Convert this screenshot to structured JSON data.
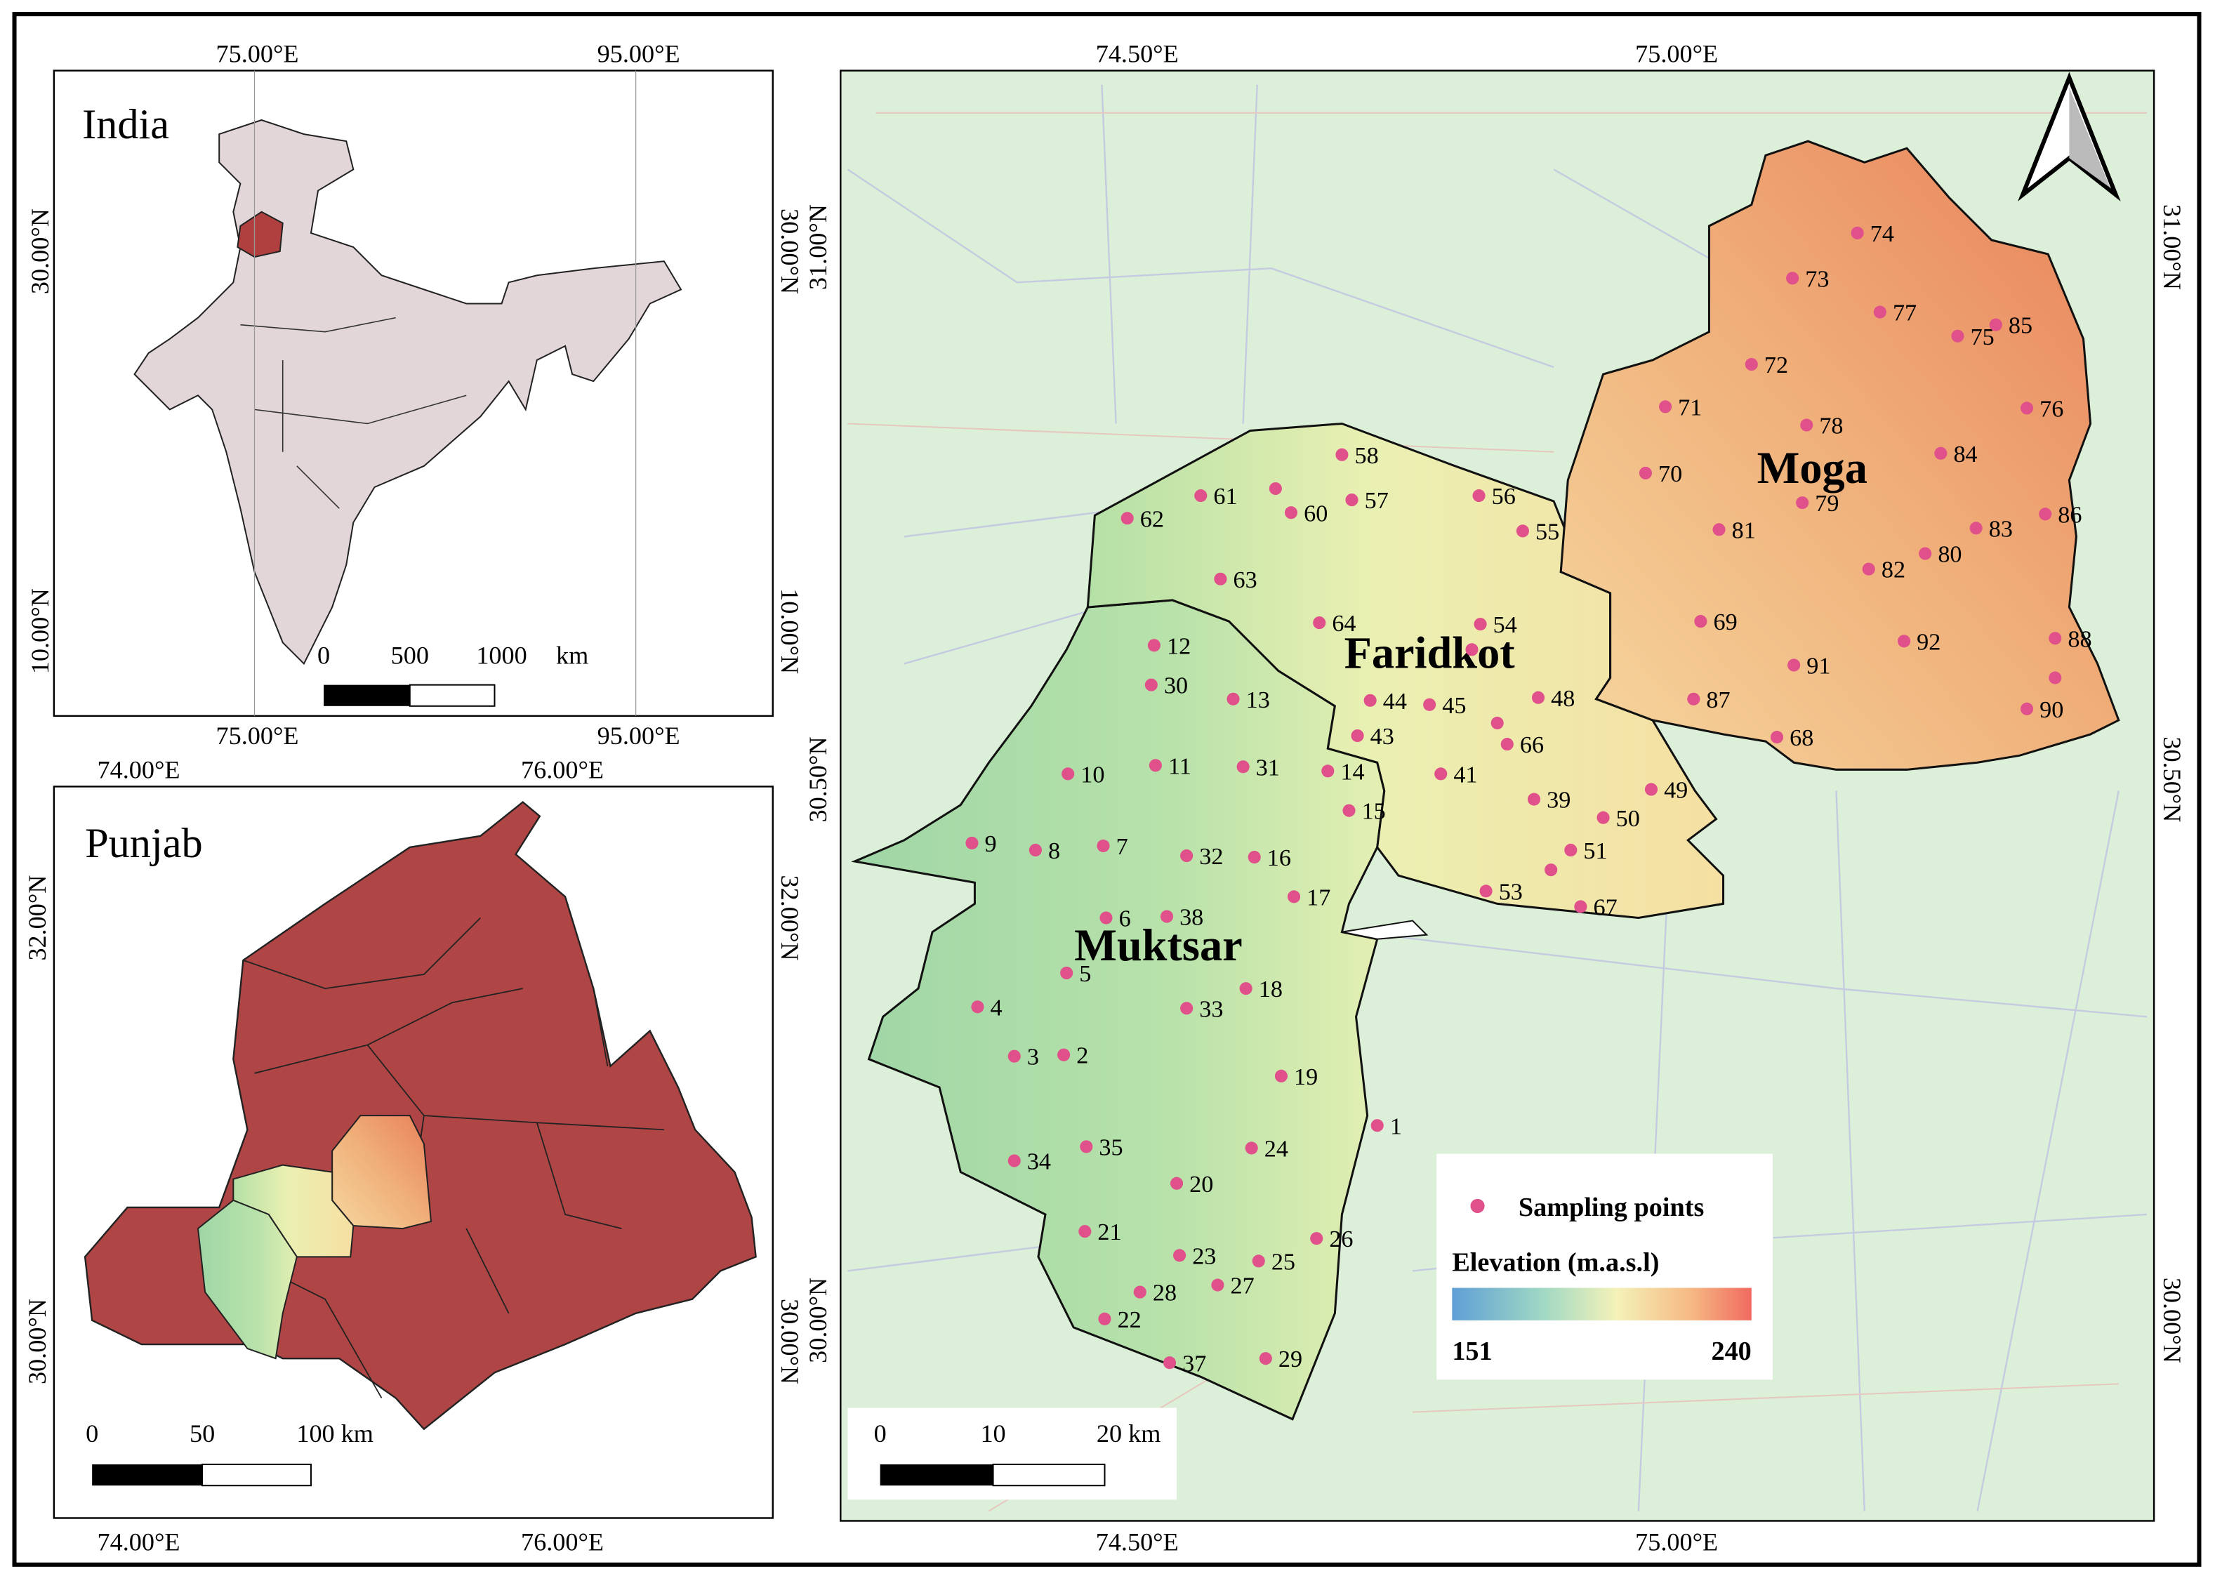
{
  "india_inset": {
    "title": "India",
    "x_labels": [
      "75.00°E",
      "95.00°E"
    ],
    "y_labels": [
      "30.00°N",
      "10.00°N"
    ],
    "scale_labels": [
      "0",
      "500",
      "1000",
      "km"
    ]
  },
  "punjab_inset": {
    "title": "Punjab",
    "x_labels": [
      "74.00°E",
      "76.00°E"
    ],
    "y_labels": [
      "32.00°N",
      "30.00°N"
    ],
    "scale_labels": [
      "0",
      "50",
      "100 km"
    ]
  },
  "main_map": {
    "x_labels": [
      "74.50°E",
      "75.00°E"
    ],
    "y_labels": [
      "31.00°N",
      "30.50°N",
      "30.00°N"
    ],
    "districts": [
      "Moga",
      "Faridkot",
      "Muktsar"
    ],
    "scale_labels": [
      "0",
      "10",
      "20 km"
    ],
    "sampling_points": [
      1,
      2,
      3,
      4,
      5,
      6,
      7,
      8,
      9,
      10,
      11,
      12,
      13,
      14,
      15,
      16,
      17,
      18,
      19,
      20,
      21,
      22,
      23,
      24,
      25,
      26,
      27,
      28,
      29,
      30,
      31,
      32,
      33,
      34,
      35,
      37,
      38,
      39,
      41,
      43,
      44,
      45,
      48,
      49,
      50,
      51,
      53,
      54,
      55,
      56,
      57,
      58,
      60,
      61,
      62,
      63,
      64,
      66,
      67,
      68,
      69,
      70,
      71,
      72,
      73,
      74,
      75,
      76,
      77,
      78,
      79,
      80,
      81,
      82,
      83,
      84,
      85,
      86,
      87,
      88,
      90,
      91,
      92
    ]
  },
  "legend": {
    "points_label": "Sampling points",
    "elevation_title": "Elevation (m.a.s.l)",
    "elevation_min": 151,
    "elevation_max": 240
  }
}
